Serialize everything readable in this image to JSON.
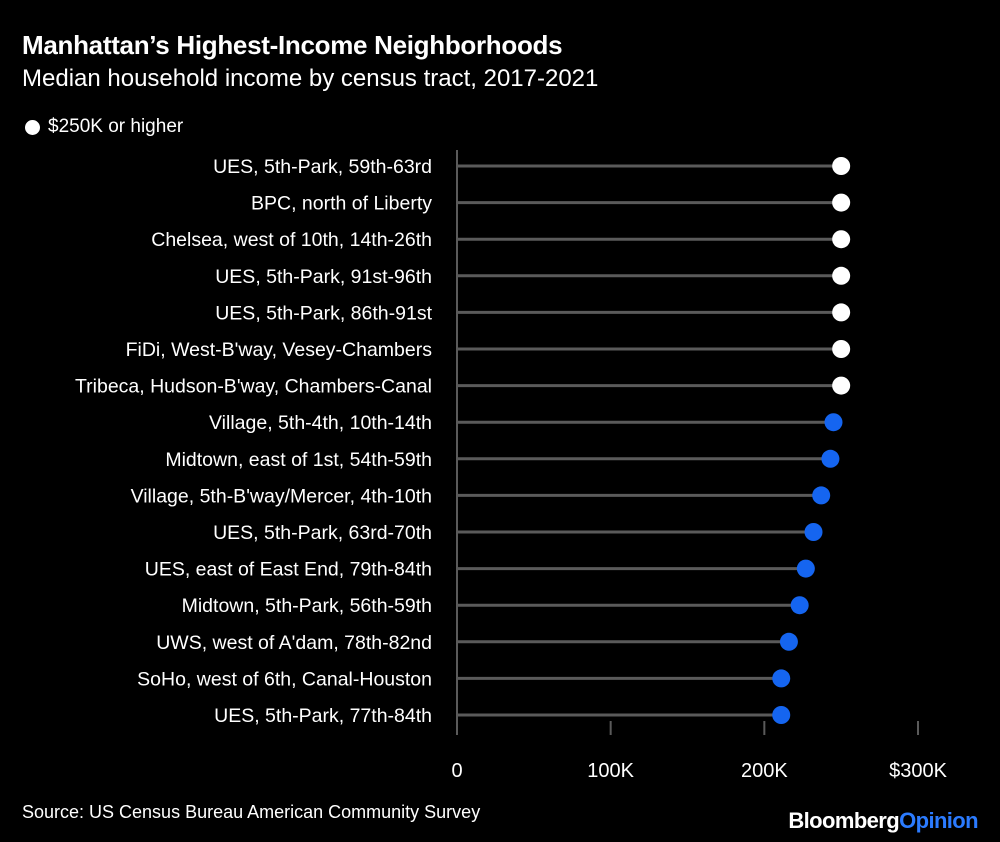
{
  "colors": {
    "background": "#000000",
    "text": "#ffffff",
    "stem": "#5a5a5a",
    "highlight": "#ffffff",
    "base": "#1565f0",
    "brand_accent": "#2b7bff"
  },
  "header": {
    "title": "Manhattan’s Highest-Income Neighborhoods",
    "subtitle": "Median household income by census tract, 2017-2021"
  },
  "legend": {
    "label": "$250K or higher"
  },
  "footer": {
    "source": "Source: US Census Bureau American Community Survey",
    "brand_main": "Bloomberg",
    "brand_sub": "Opinion"
  },
  "chart_data": {
    "type": "lollipop",
    "title": "Manhattan’s Highest-Income Neighborhoods",
    "subtitle": "Median household income by census tract, 2017-2021",
    "xlabel": "",
    "ylabel": "",
    "xlim": [
      0,
      300000
    ],
    "x_ticks": [
      0,
      100000,
      200000,
      300000
    ],
    "x_tick_labels": [
      "0",
      "100K",
      "200K",
      "$300K"
    ],
    "threshold": 250000,
    "categories": [
      "UES, 5th-Park, 59th-63rd",
      "BPC, north of Liberty",
      "Chelsea, west of 10th, 14th-26th",
      "UES, 5th-Park, 91st-96th",
      "UES, 5th-Park, 86th-91st",
      "FiDi, West-B'way, Vesey-Chambers",
      "Tribeca, Hudson-B'way, Chambers-Canal",
      "Village, 5th-4th, 10th-14th",
      "Midtown, east of 1st, 54th-59th",
      "Village, 5th-B'way/Mercer, 4th-10th",
      "UES, 5th-Park, 63rd-70th",
      "UES, east of East End, 79th-84th",
      "Midtown, 5th-Park, 56th-59th",
      "UWS, west of A'dam, 78th-82nd",
      "SoHo, west of 6th, Canal-Houston",
      "UES, 5th-Park, 77th-84th"
    ],
    "values": [
      250001,
      250001,
      250001,
      250001,
      250001,
      250001,
      250001,
      245000,
      243000,
      237000,
      232000,
      227000,
      223000,
      216000,
      211000,
      211000
    ]
  }
}
